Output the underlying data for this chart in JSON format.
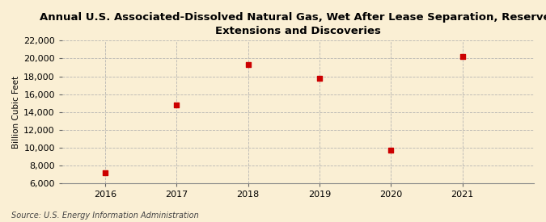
{
  "title": "Annual U.S. Associated-Dissolved Natural Gas, Wet After Lease Separation, Reserves\nExtensions and Discoveries",
  "xlabel": "",
  "ylabel": "Billion Cubic Feet",
  "source": "Source: U.S. Energy Information Administration",
  "years": [
    2016,
    2017,
    2018,
    2019,
    2020,
    2021
  ],
  "values": [
    7200,
    14800,
    19300,
    17800,
    9700,
    20200
  ],
  "marker_color": "#cc0000",
  "marker_style": "s",
  "marker_size": 4,
  "ylim": [
    6000,
    22000
  ],
  "yticks": [
    6000,
    8000,
    10000,
    12000,
    14000,
    16000,
    18000,
    20000,
    22000
  ],
  "xlim": [
    2015.4,
    2022.0
  ],
  "xticks": [
    2016,
    2017,
    2018,
    2019,
    2020,
    2021
  ],
  "background_color": "#faefd4",
  "plot_bg_color": "#faefd4",
  "grid_color": "#b0b0b0",
  "grid_style": "--",
  "title_fontsize": 9.5,
  "axis_label_fontsize": 7.5,
  "tick_fontsize": 8,
  "source_fontsize": 7
}
